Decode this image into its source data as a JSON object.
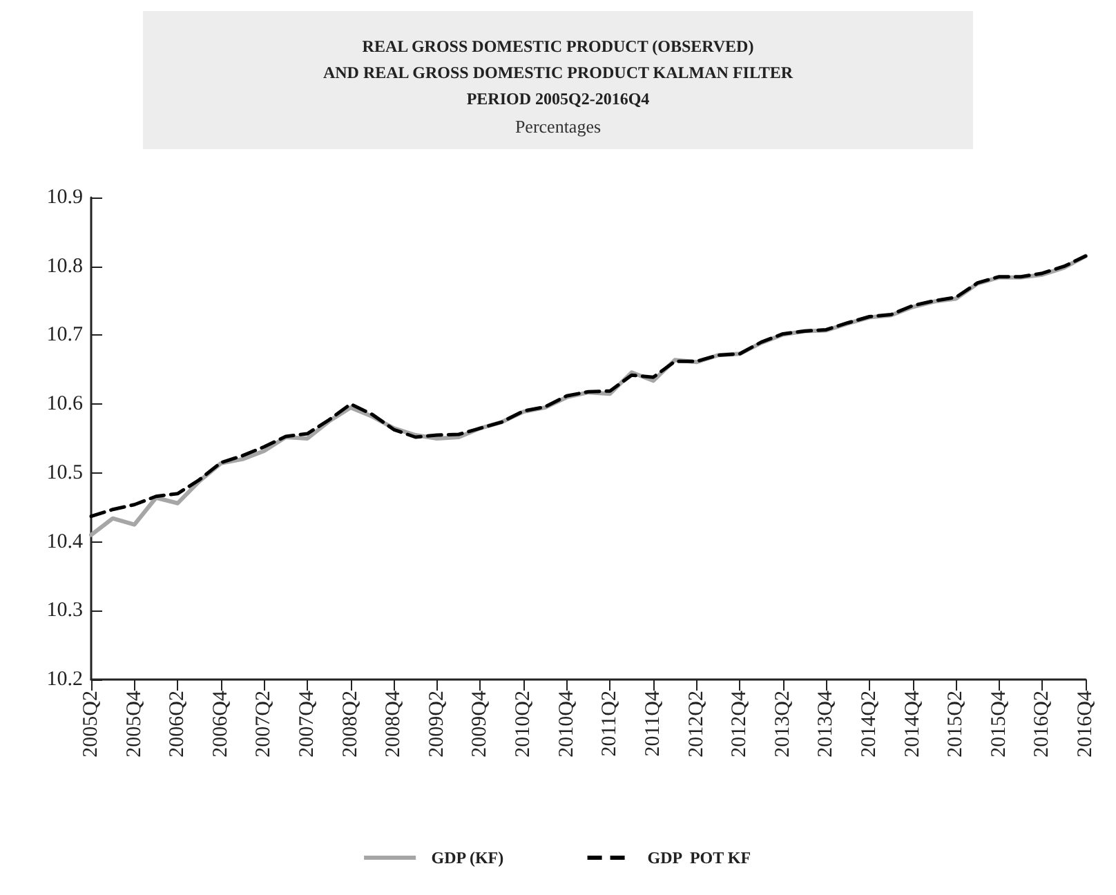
{
  "chart_data": {
    "type": "line",
    "title": "REAL GROSS DOMESTIC PRODUCT (OBSERVED)\nAND REAL GROSS DOMESTIC PRODUCT KALMAN FILTER\nPERIOD 2005Q2-2016Q4",
    "subtitle": "Percentages",
    "categories": [
      "2005Q2",
      null,
      "2005Q4",
      null,
      "2006Q2",
      null,
      "2006Q4",
      null,
      "2007Q2",
      null,
      "2007Q4",
      null,
      "2008Q2",
      null,
      "2008Q4",
      null,
      "2009Q2",
      null,
      "2009Q4",
      null,
      "2010Q2",
      null,
      "2010Q4",
      null,
      "2011Q2",
      null,
      "2011Q4",
      null,
      "2012Q2",
      null,
      "2012Q4",
      null,
      "2013Q2",
      null,
      "2013Q4",
      null,
      "2014Q2",
      null,
      "2014Q4",
      null,
      "2015Q2",
      null,
      "2015Q4",
      null,
      "2016Q2",
      null,
      "2016Q4"
    ],
    "series": [
      {
        "name": "GDP (KF)",
        "color": "#a6a6a6",
        "line_style": "solid",
        "values": [
          10.41,
          10.434,
          10.425,
          10.464,
          10.456,
          10.488,
          10.514,
          10.52,
          10.532,
          10.552,
          10.55,
          10.575,
          10.595,
          10.582,
          10.565,
          10.555,
          10.55,
          10.552,
          10.565,
          10.574,
          10.589,
          10.595,
          10.61,
          10.617,
          10.615,
          10.646,
          10.634,
          10.664,
          10.661,
          10.671,
          10.673,
          10.689,
          10.701,
          10.706,
          10.707,
          10.717,
          10.726,
          10.729,
          10.741,
          10.749,
          10.753,
          10.775,
          10.784,
          10.784,
          10.788,
          10.798,
          10.815
        ]
      },
      {
        "name": "GDP  POT KF",
        "color": "#000000",
        "line_style": "dashed",
        "values": [
          10.437,
          10.447,
          10.454,
          10.466,
          10.47,
          10.49,
          10.515,
          10.525,
          10.538,
          10.553,
          10.557,
          10.577,
          10.6,
          10.585,
          10.563,
          10.552,
          10.555,
          10.556,
          10.565,
          10.574,
          10.59,
          10.596,
          10.612,
          10.618,
          10.619,
          10.642,
          10.639,
          10.662,
          10.662,
          10.671,
          10.673,
          10.69,
          10.702,
          10.706,
          10.708,
          10.718,
          10.727,
          10.73,
          10.743,
          10.75,
          10.755,
          10.776,
          10.785,
          10.785,
          10.79,
          10.8,
          10.815
        ]
      }
    ],
    "ylim": [
      10.2,
      10.9
    ],
    "yticks": [
      10.2,
      10.3,
      10.4,
      10.5,
      10.6,
      10.7,
      10.8,
      10.9
    ],
    "grid": false,
    "legend": "bottom",
    "marker": "none"
  }
}
